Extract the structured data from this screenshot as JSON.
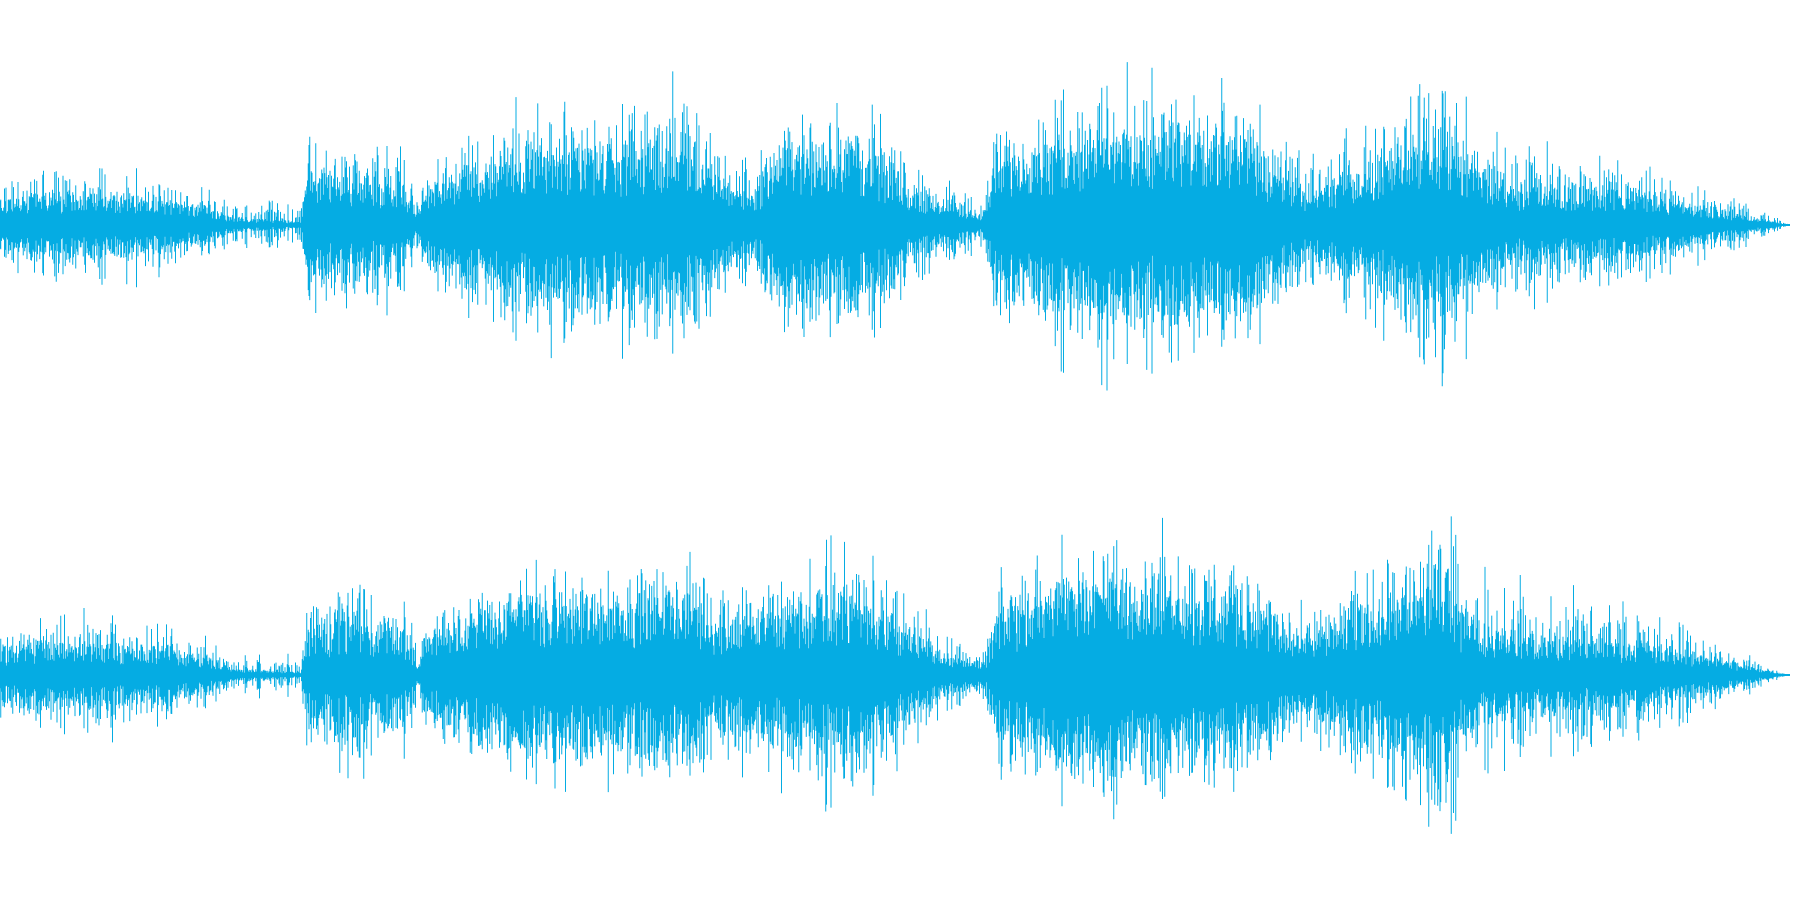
{
  "waveform": {
    "color": "#05ace3",
    "background": "#ffffff",
    "channels": [
      {
        "name": "",
        "envelope": [
          {
            "t": 0.0,
            "peak": 0.22,
            "body": 0.1
          },
          {
            "t": 0.03,
            "peak": 0.28,
            "body": 0.12
          },
          {
            "t": 0.06,
            "peak": 0.3,
            "body": 0.12
          },
          {
            "t": 0.09,
            "peak": 0.24,
            "body": 0.1
          },
          {
            "t": 0.115,
            "peak": 0.18,
            "body": 0.07
          },
          {
            "t": 0.13,
            "peak": 0.1,
            "body": 0.03
          },
          {
            "t": 0.15,
            "peak": 0.12,
            "body": 0.02
          },
          {
            "t": 0.168,
            "peak": 0.08,
            "body": 0.01
          },
          {
            "t": 0.171,
            "peak": 0.45,
            "body": 0.2
          },
          {
            "t": 0.2,
            "peak": 0.4,
            "body": 0.18
          },
          {
            "t": 0.225,
            "peak": 0.45,
            "body": 0.18
          },
          {
            "t": 0.234,
            "peak": 0.1,
            "body": 0.04
          },
          {
            "t": 0.238,
            "peak": 0.35,
            "body": 0.15
          },
          {
            "t": 0.26,
            "peak": 0.45,
            "body": 0.22
          },
          {
            "t": 0.3,
            "peak": 0.6,
            "body": 0.3
          },
          {
            "t": 0.34,
            "peak": 0.55,
            "body": 0.28
          },
          {
            "t": 0.38,
            "peak": 0.7,
            "body": 0.32
          },
          {
            "t": 0.4,
            "peak": 0.4,
            "body": 0.18
          },
          {
            "t": 0.42,
            "peak": 0.3,
            "body": 0.12
          },
          {
            "t": 0.44,
            "peak": 0.55,
            "body": 0.3
          },
          {
            "t": 0.48,
            "peak": 0.6,
            "body": 0.3
          },
          {
            "t": 0.505,
            "peak": 0.4,
            "body": 0.15
          },
          {
            "t": 0.53,
            "peak": 0.2,
            "body": 0.08
          },
          {
            "t": 0.55,
            "peak": 0.12,
            "body": 0.04
          },
          {
            "t": 0.556,
            "peak": 0.5,
            "body": 0.25
          },
          {
            "t": 0.6,
            "peak": 0.75,
            "body": 0.35
          },
          {
            "t": 0.65,
            "peak": 0.75,
            "body": 0.35
          },
          {
            "t": 0.7,
            "peak": 0.6,
            "body": 0.3
          },
          {
            "t": 0.73,
            "peak": 0.3,
            "body": 0.12
          },
          {
            "t": 0.76,
            "peak": 0.5,
            "body": 0.22
          },
          {
            "t": 0.8,
            "peak": 0.85,
            "body": 0.35
          },
          {
            "t": 0.825,
            "peak": 0.5,
            "body": 0.2
          },
          {
            "t": 0.85,
            "peak": 0.4,
            "body": 0.15
          },
          {
            "t": 0.9,
            "peak": 0.38,
            "body": 0.14
          },
          {
            "t": 0.95,
            "peak": 0.2,
            "body": 0.08
          },
          {
            "t": 0.98,
            "peak": 0.1,
            "body": 0.03
          },
          {
            "t": 1.0,
            "peak": 0.0,
            "body": 0.0
          }
        ]
      },
      {
        "name": "",
        "envelope": [
          {
            "t": 0.0,
            "peak": 0.22,
            "body": 0.1
          },
          {
            "t": 0.03,
            "peak": 0.28,
            "body": 0.12
          },
          {
            "t": 0.06,
            "peak": 0.3,
            "body": 0.12
          },
          {
            "t": 0.09,
            "peak": 0.24,
            "body": 0.1
          },
          {
            "t": 0.115,
            "peak": 0.18,
            "body": 0.07
          },
          {
            "t": 0.13,
            "peak": 0.1,
            "body": 0.03
          },
          {
            "t": 0.15,
            "peak": 0.12,
            "body": 0.02
          },
          {
            "t": 0.168,
            "peak": 0.08,
            "body": 0.01
          },
          {
            "t": 0.171,
            "peak": 0.4,
            "body": 0.18
          },
          {
            "t": 0.2,
            "peak": 0.5,
            "body": 0.2
          },
          {
            "t": 0.225,
            "peak": 0.45,
            "body": 0.18
          },
          {
            "t": 0.234,
            "peak": 0.1,
            "body": 0.04
          },
          {
            "t": 0.238,
            "peak": 0.35,
            "body": 0.15
          },
          {
            "t": 0.26,
            "peak": 0.45,
            "body": 0.22
          },
          {
            "t": 0.3,
            "peak": 0.55,
            "body": 0.28
          },
          {
            "t": 0.34,
            "peak": 0.55,
            "body": 0.28
          },
          {
            "t": 0.38,
            "peak": 0.6,
            "body": 0.3
          },
          {
            "t": 0.4,
            "peak": 0.45,
            "body": 0.2
          },
          {
            "t": 0.44,
            "peak": 0.55,
            "body": 0.25
          },
          {
            "t": 0.48,
            "peak": 0.75,
            "body": 0.3
          },
          {
            "t": 0.505,
            "peak": 0.45,
            "body": 0.18
          },
          {
            "t": 0.53,
            "peak": 0.2,
            "body": 0.08
          },
          {
            "t": 0.55,
            "peak": 0.12,
            "body": 0.04
          },
          {
            "t": 0.556,
            "peak": 0.45,
            "body": 0.22
          },
          {
            "t": 0.6,
            "peak": 0.7,
            "body": 0.35
          },
          {
            "t": 0.65,
            "peak": 0.7,
            "body": 0.35
          },
          {
            "t": 0.7,
            "peak": 0.55,
            "body": 0.28
          },
          {
            "t": 0.73,
            "peak": 0.3,
            "body": 0.12
          },
          {
            "t": 0.76,
            "peak": 0.55,
            "body": 0.25
          },
          {
            "t": 0.8,
            "peak": 0.9,
            "body": 0.35
          },
          {
            "t": 0.825,
            "peak": 0.5,
            "body": 0.2
          },
          {
            "t": 0.85,
            "peak": 0.45,
            "body": 0.15
          },
          {
            "t": 0.9,
            "peak": 0.38,
            "body": 0.14
          },
          {
            "t": 0.95,
            "peak": 0.22,
            "body": 0.08
          },
          {
            "t": 0.98,
            "peak": 0.1,
            "body": 0.03
          },
          {
            "t": 1.0,
            "peak": 0.0,
            "body": 0.0
          }
        ]
      }
    ]
  }
}
